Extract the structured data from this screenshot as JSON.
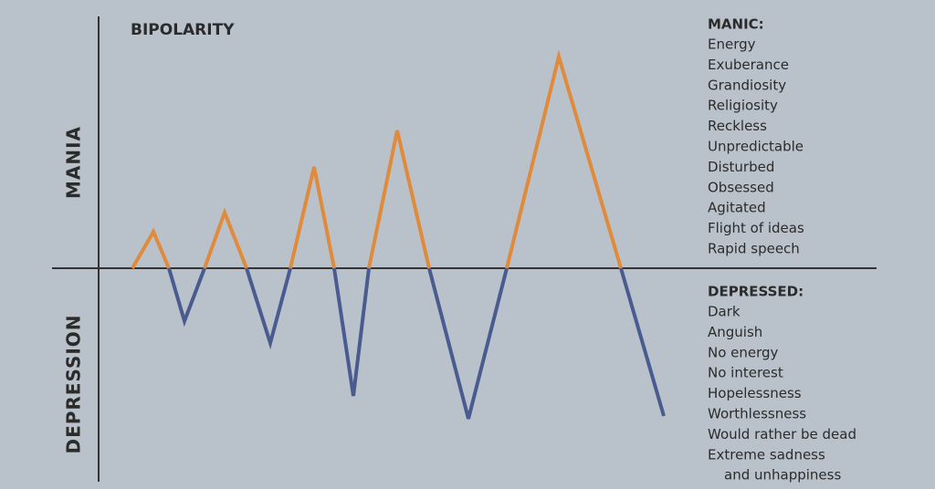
{
  "header": {
    "title": "BIPOLARITY"
  },
  "axis_labels": {
    "upper": "MANIA",
    "lower": "DEPRESSION"
  },
  "manic": {
    "heading": "MANIC:",
    "items": [
      "Energy",
      "Exuberance",
      "Grandiosity",
      "Religiosity",
      "Reckless",
      "Unpredictable",
      "Disturbed",
      "Obsessed",
      "Agitated",
      "Flight of ideas",
      "Rapid speech"
    ]
  },
  "depressed": {
    "heading": "DEPRESSED:",
    "items": [
      "Dark",
      "Anguish",
      "No energy",
      "No interest",
      "Hopelessness",
      "Worthlessness",
      "Would rather be dead",
      "Extreme sadness",
      "and unhappiness"
    ]
  }
}
